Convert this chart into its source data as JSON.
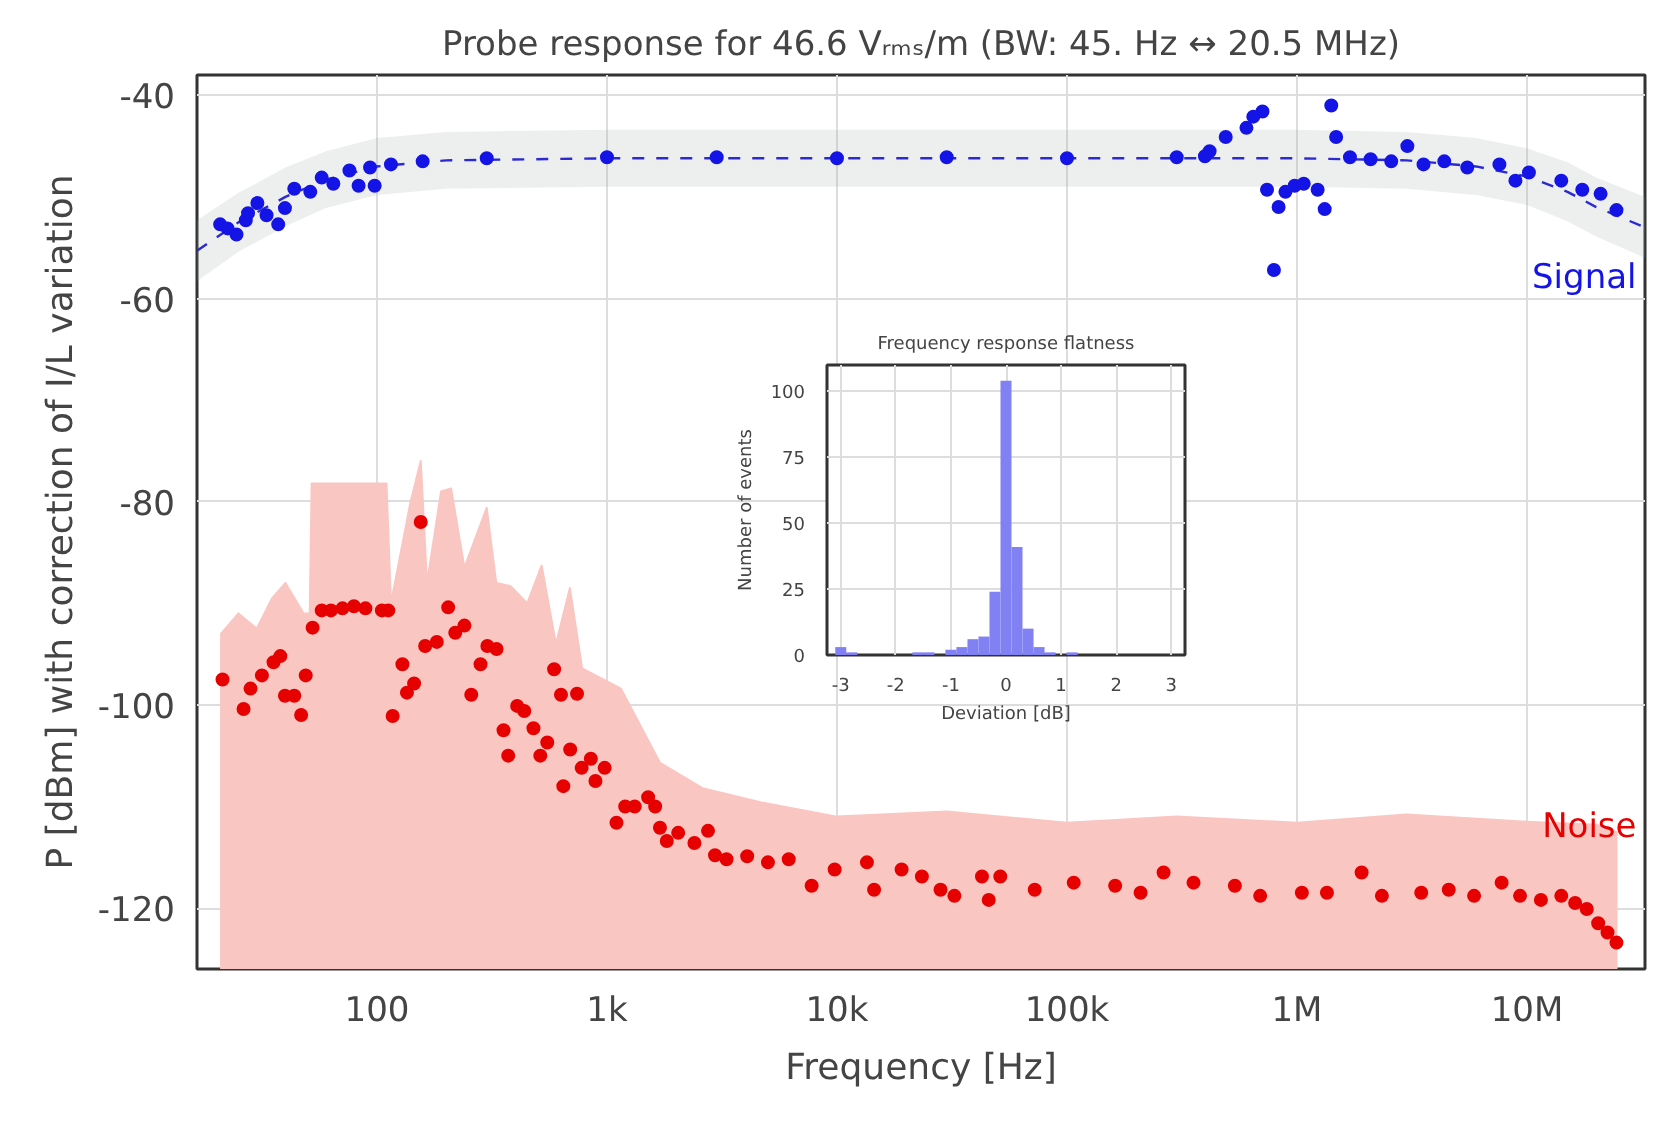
{
  "chart_data": [
    {
      "type": "scatter",
      "title": "Probe response for 46.6 Vᵣₘₛ/m (BW: 45. Hz ↔ 20.5 MHz)",
      "xlabel": "Frequency [Hz]",
      "ylabel": "P [dBm] with correction of I/L variation",
      "log": "x",
      "grid": true,
      "xlim": [
        16.5,
        32600000
      ],
      "ylim": [
        -126,
        -38
      ],
      "xticks": [
        100,
        {
          "value": 1000,
          "label": "1k"
        },
        {
          "value": 10000,
          "label": "10k"
        },
        {
          "value": 100000,
          "label": "100k"
        },
        {
          "value": 1000000,
          "label": "1M"
        },
        {
          "value": 10000000,
          "label": "10M"
        }
      ],
      "yticks": [
        -120,
        -100,
        -80,
        -60,
        -40
      ],
      "series": [
        {
          "type": "area",
          "color": "#f9c6c2",
          "x": [
            21,
            25,
            30,
            35,
            40,
            48,
            51,
            52,
            80,
            110,
            115,
            140,
            155,
            165,
            190,
            210,
            240,
            300,
            330,
            380,
            450,
            520,
            600,
            690,
            780,
            1150,
            1700,
            2600,
            4700,
            10000,
            30000,
            100000,
            300000,
            1000000,
            3000000,
            10000000,
            20000000,
            24500000
          ],
          "values": [
            -93,
            -91,
            -92.5,
            -89.5,
            -88,
            -91,
            -91,
            -78.2,
            -78.2,
            -78.2,
            -90,
            -80,
            -76,
            -88,
            -79,
            -78.7,
            -86.5,
            -80.6,
            -88,
            -88.3,
            -90,
            -86.3,
            -94,
            -88.5,
            -96.4,
            -98.4,
            -105.7,
            -108.2,
            -109.6,
            -111,
            -110.5,
            -111.6,
            -111,
            -111.6,
            -110.8,
            -111.5,
            -111.8,
            -112.5
          ]
        },
        {
          "type": "line",
          "color": "#2a2ad0",
          "line_style": "dashed",
          "x": [
            16.5,
            25,
            40,
            60,
            100,
            200,
            1000,
            1000000,
            3000000,
            6000000,
            10000000,
            15000000,
            20000000,
            32600000
          ],
          "values": [
            -55.3,
            -52.5,
            -50,
            -48.3,
            -47,
            -46.4,
            -46.2,
            -46.2,
            -46.4,
            -47,
            -48,
            -49.5,
            -51,
            -53
          ],
          "lower": [
            -58.3,
            -55.4,
            -52.9,
            -51.1,
            -49.8,
            -49.2,
            -49,
            -49,
            -49.2,
            -49.8,
            -50.8,
            -52.4,
            -53.9,
            -56
          ],
          "upper": [
            -52.3,
            -49.6,
            -47.1,
            -45.5,
            -44.2,
            -43.6,
            -43.4,
            -43.4,
            -43.6,
            -44.2,
            -45.2,
            -46.6,
            -48.1,
            -50
          ]
        },
        {
          "type": "scatter",
          "name": "Noise",
          "color": "#e60000",
          "marker": "circle",
          "x": [
            21.3,
            26.3,
            28.2,
            31.6,
            35.5,
            38,
            39.8,
            43.7,
            46.8,
            49,
            52.5,
            57.5,
            63.1,
            70.8,
            79.4,
            89.1,
            105,
            112,
            117,
            129,
            135,
            145,
            155,
            162,
            182,
            204,
            219,
            240,
            257,
            282,
            302,
            331,
            355,
            372,
            407,
            437,
            479,
            513,
            550,
            589,
            631,
            646,
            692,
            741,
            776,
            851,
            891,
            977,
            1100,
            1200,
            1320,
            1510,
            1620,
            1700,
            1820,
            2040,
            2400,
            2750,
            2950,
            3310,
            4070,
            5010,
            6170,
            7760,
            9770,
            13500,
            14500,
            19100,
            23400,
            28200,
            32400,
            42700,
            45700,
            51300,
            72400,
            107000,
            162000,
            209000,
            263000,
            355000,
            537000,
            692000,
            1050000,
            1350000,
            1910000,
            2340000,
            3470000,
            4570000,
            5890000,
            7760000,
            9330000,
            11500000,
            14100000,
            16200000,
            18200000,
            20400000,
            22400000,
            24500000
          ],
          "values": [
            -97.5,
            -100.4,
            -98.4,
            -97.1,
            -95.8,
            -95.2,
            -99.1,
            -99.1,
            -101,
            -97.1,
            -92.4,
            -90.7,
            -90.7,
            -90.5,
            -90.3,
            -90.5,
            -90.7,
            -90.7,
            -101.1,
            -96,
            -98.8,
            -97.9,
            -82,
            -94.2,
            -93.8,
            -90.4,
            -92.9,
            -92.2,
            -99,
            -96,
            -94.2,
            -94.5,
            -102.5,
            -105,
            -100.1,
            -100.6,
            -102.3,
            -105,
            -103.7,
            -96.5,
            -99,
            -108,
            -104.4,
            -98.9,
            -106.2,
            -105.3,
            -107.5,
            -106.2,
            -111.6,
            -110,
            -110,
            -109.1,
            -110,
            -112.1,
            -113.4,
            -112.6,
            -113.6,
            -112.4,
            -114.8,
            -115.2,
            -114.9,
            -115.5,
            -115.2,
            -117.8,
            -116.2,
            -115.5,
            -118.2,
            -116.2,
            -116.9,
            -118.2,
            -118.8,
            -116.9,
            -119.2,
            -116.9,
            -118.2,
            -117.5,
            -117.8,
            -118.5,
            -116.5,
            -117.5,
            -117.8,
            -118.8,
            -118.5,
            -118.5,
            -116.5,
            -118.8,
            -118.5,
            -118.2,
            -118.8,
            -117.5,
            -118.8,
            -119.2,
            -118.8,
            -119.5,
            -120.1,
            -121.5,
            -122.4,
            -123.4
          ]
        },
        {
          "type": "scatter",
          "name": "Signal",
          "color": "#1414e6",
          "marker": "circle",
          "x": [
            20.8,
            22.4,
            24.5,
            26.9,
            27.5,
            30.2,
            33.1,
            37.2,
            39.8,
            43.7,
            51.3,
            57.5,
            64.6,
            75.9,
            83.2,
            93.3,
            97.7,
            115,
            158,
            300,
            1000,
            3000,
            10000,
            30000,
            100000,
            300000,
            398000,
            417000,
            490000,
            603000,
            646000,
            708000,
            741000,
            794000,
            832000,
            891000,
            977000,
            1070000,
            1230000,
            1320000,
            1410000,
            1480000,
            1700000,
            2090000,
            2570000,
            3020000,
            3550000,
            4370000,
            5500000,
            7590000,
            8910000,
            10200000,
            14100000,
            17400000,
            20900000,
            24500000
          ],
          "values": [
            -52.7,
            -53.1,
            -53.7,
            -52.3,
            -51.6,
            -50.6,
            -51.8,
            -52.7,
            -51.1,
            -49.2,
            -49.5,
            -48.1,
            -48.7,
            -47.4,
            -48.9,
            -47.1,
            -48.9,
            -46.8,
            -46.5,
            -46.2,
            -46.1,
            -46.1,
            -46.2,
            -46.1,
            -46.2,
            -46.1,
            -46,
            -45.5,
            -44.1,
            -43.2,
            -42.1,
            -41.6,
            -49.3,
            -57.2,
            -51,
            -49.5,
            -48.9,
            -48.7,
            -49.3,
            -51.2,
            -41,
            -44.1,
            -46.1,
            -46.3,
            -46.5,
            -45,
            -46.8,
            -46.5,
            -47.1,
            -46.8,
            -48.4,
            -47.6,
            -48.4,
            -49.3,
            -49.7,
            -51.3
          ]
        }
      ]
    },
    {
      "type": "histogram",
      "title": "Frequency response flatness",
      "xlabel": "Deviation [dB]",
      "ylabel": "Number of events",
      "grid": true,
      "color": "#8181f3",
      "xlim": [
        -3.25,
        3.25
      ],
      "ylim": [
        0,
        110
      ],
      "xticks": [
        -3,
        -2,
        -1,
        0,
        1,
        2,
        3
      ],
      "yticks": [
        0,
        25,
        50,
        75,
        100
      ],
      "bins": [
        -3.1,
        -2.9,
        -2.7,
        -2.5,
        -2.3,
        -2.1,
        -1.9,
        -1.7,
        -1.5,
        -1.3,
        -1.1,
        -0.9,
        -0.7,
        -0.5,
        -0.3,
        -0.1,
        0.1,
        0.3,
        0.5,
        0.7,
        0.9,
        1.1,
        1.3,
        1.5,
        1.7,
        1.9,
        2.1,
        2.3,
        2.5,
        2.7,
        2.9,
        3.1
      ],
      "values": [
        3,
        1,
        0,
        0,
        0,
        0,
        0,
        1,
        1,
        0,
        2,
        3,
        6,
        7,
        24,
        104,
        41,
        10,
        3,
        1,
        0,
        1,
        0,
        0,
        0,
        0,
        0,
        0,
        0,
        0,
        0
      ]
    }
  ]
}
